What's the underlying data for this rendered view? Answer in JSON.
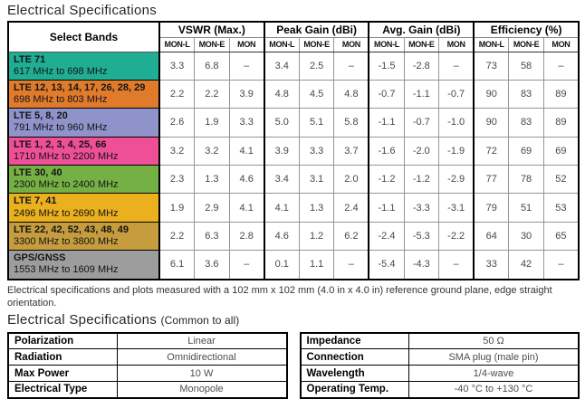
{
  "title": "Electrical Specifications",
  "main_table": {
    "select_bands_header": "Select Bands",
    "groups": [
      {
        "label": "VSWR (Max.)"
      },
      {
        "label": "Peak Gain (dBi)"
      },
      {
        "label": "Avg. Gain (dBi)"
      },
      {
        "label": "Efficiency (%)"
      }
    ],
    "subcols": [
      "MON-L",
      "MON-E",
      "MON"
    ],
    "rows": [
      {
        "band": "LTE 71",
        "range": "617 MHz to 698 MHz",
        "color": "#1fae93",
        "values": [
          "3.3",
          "6.8",
          "–",
          "3.4",
          "2.5",
          "–",
          "-1.5",
          "-2.8",
          "–",
          "73",
          "58",
          "–"
        ]
      },
      {
        "band": "LTE 12, 13, 14, 17, 26, 28, 29",
        "range": "698 MHz to 803 MHz",
        "color": "#e07b2b",
        "values": [
          "2.2",
          "2.2",
          "3.9",
          "4.8",
          "4.5",
          "4.8",
          "-0.7",
          "-1.1",
          "-0.7",
          "90",
          "83",
          "89"
        ]
      },
      {
        "band": "LTE 5, 8, 20",
        "range": "791 MHz to 960 MHz",
        "color": "#8f93ca",
        "values": [
          "2.6",
          "1.9",
          "3.3",
          "5.0",
          "5.1",
          "5.8",
          "-1.1",
          "-0.7",
          "-1.0",
          "90",
          "83",
          "89"
        ]
      },
      {
        "band": "LTE 1, 2, 3, 4, 25, 66",
        "range": "1710 MHz to 2200 MHz",
        "color": "#ee4f96",
        "values": [
          "3.2",
          "3.2",
          "4.1",
          "3.9",
          "3.3",
          "3.7",
          "-1.6",
          "-2.0",
          "-1.9",
          "72",
          "69",
          "69"
        ]
      },
      {
        "band": "LTE 30, 40",
        "range": "2300 MHz to 2400 MHz",
        "color": "#75b045",
        "values": [
          "2.3",
          "1.3",
          "4.6",
          "3.4",
          "3.1",
          "2.0",
          "-1.2",
          "-1.2",
          "-2.9",
          "77",
          "78",
          "52"
        ]
      },
      {
        "band": "LTE 7, 41",
        "range": "2496 MHz to 2690 MHz",
        "color": "#eab01e",
        "values": [
          "1.9",
          "2.9",
          "4.1",
          "4.1",
          "1.3",
          "2.4",
          "-1.1",
          "-3.3",
          "-3.1",
          "79",
          "51",
          "53"
        ]
      },
      {
        "band": "LTE 22, 42, 52, 43, 48, 49",
        "range": "3300 MHz to 3800 MHz",
        "color": "#c59c3e",
        "values": [
          "2.2",
          "6.3",
          "2.8",
          "4.6",
          "1.2",
          "6.2",
          "-2.4",
          "-5.3",
          "-2.2",
          "64",
          "30",
          "65"
        ]
      },
      {
        "band": "GPS/GNSS",
        "range": "1553 MHz to 1609 MHz",
        "color": "#9d9d9d",
        "values": [
          "6.1",
          "3.6",
          "–",
          "0.1",
          "1.1",
          "–",
          "-5.4",
          "-4.3",
          "–",
          "33",
          "42",
          "–"
        ]
      }
    ]
  },
  "note": "Electrical specifications and plots measured with a 102 mm x 102 mm (4.0 in x 4.0 in) reference ground plane, edge straight orientation.",
  "common_title": "Electrical Specifications",
  "common_subtitle": "(Common to all)",
  "common_left": [
    [
      "Polarization",
      "Linear"
    ],
    [
      "Radiation",
      "Omnidirectional"
    ],
    [
      "Max Power",
      "10 W"
    ],
    [
      "Electrical Type",
      "Monopole"
    ]
  ],
  "common_right": [
    [
      "Impedance",
      "50 Ω"
    ],
    [
      "Connection",
      "SMA plug (male pin)"
    ],
    [
      "Wavelength",
      "1/4-wave"
    ],
    [
      "Operating Temp.",
      "-40 °C to +130 °C"
    ]
  ]
}
